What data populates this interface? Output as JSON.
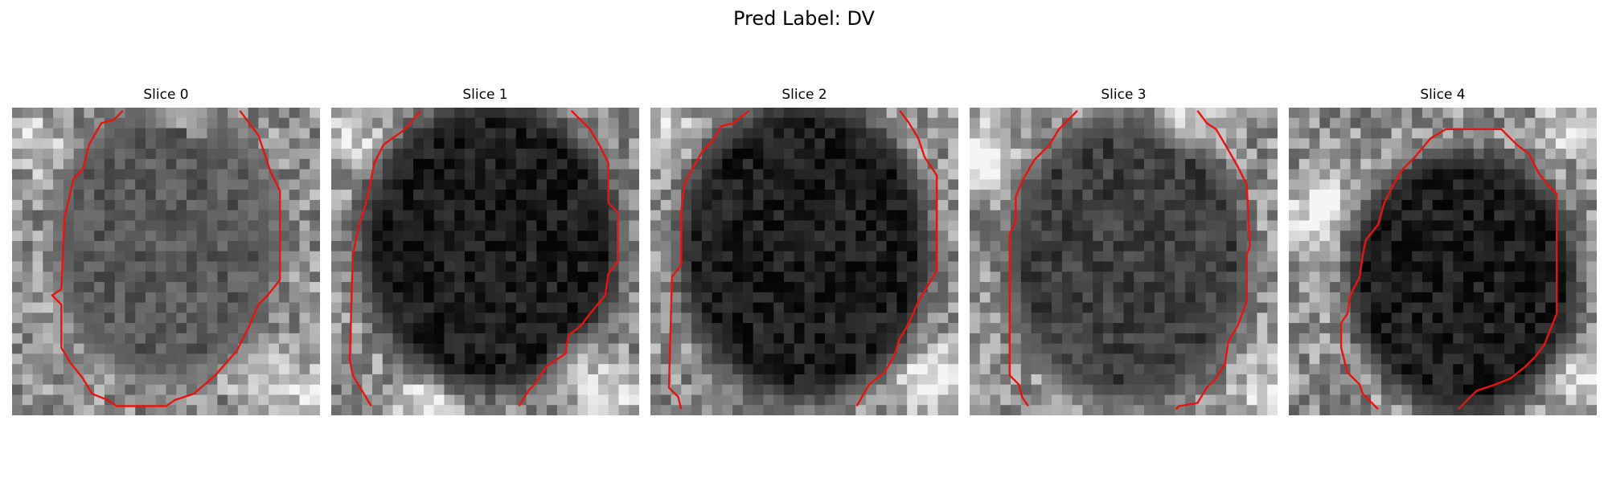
{
  "figure": {
    "suptitle": "Pred Label: DV"
  },
  "panels": [
    {
      "title": "Slice 0",
      "seed": 11,
      "blob": "gray",
      "blobCenter": [
        15,
        13
      ],
      "blobRadius": [
        11,
        13.5
      ],
      "bright": [
        [
          0.55,
          0.05
        ],
        [
          0.08,
          0.12
        ],
        [
          0.8,
          0.88
        ],
        [
          0.95,
          0.92
        ]
      ],
      "contour": [
        [
          0.36,
          0.01
        ],
        [
          0.33,
          0.04
        ],
        [
          0.29,
          0.05
        ],
        [
          0.25,
          0.12
        ],
        [
          0.23,
          0.2
        ],
        [
          0.2,
          0.23
        ],
        [
          0.17,
          0.36
        ],
        [
          0.16,
          0.59
        ],
        [
          0.13,
          0.61
        ],
        [
          0.16,
          0.64
        ],
        [
          0.16,
          0.78
        ],
        [
          0.19,
          0.83
        ],
        [
          0.23,
          0.88
        ],
        [
          0.26,
          0.93
        ],
        [
          0.31,
          0.95
        ],
        [
          0.34,
          0.97
        ],
        [
          0.5,
          0.97
        ],
        [
          0.53,
          0.95
        ],
        [
          0.59,
          0.93
        ],
        [
          0.66,
          0.87
        ],
        [
          0.73,
          0.79
        ],
        [
          0.77,
          0.71
        ],
        [
          0.8,
          0.64
        ],
        [
          0.83,
          0.61
        ],
        [
          0.87,
          0.56
        ],
        [
          0.87,
          0.27
        ],
        [
          0.84,
          0.21
        ],
        [
          0.82,
          0.15
        ],
        [
          0.8,
          0.09
        ],
        [
          0.74,
          0.01
        ]
      ]
    },
    {
      "title": "Slice 1",
      "seed": 23,
      "blob": "dark",
      "blobCenter": [
        15.5,
        13.5
      ],
      "blobRadius": [
        13,
        14.5
      ],
      "bright": [
        [
          0.06,
          0.1
        ],
        [
          0.8,
          0.82
        ],
        [
          0.92,
          0.95
        ],
        [
          0.3,
          0.96
        ]
      ],
      "contour": [
        [
          0.29,
          0.01
        ],
        [
          0.24,
          0.07
        ],
        [
          0.17,
          0.12
        ],
        [
          0.14,
          0.18
        ],
        [
          0.13,
          0.23
        ],
        [
          0.11,
          0.32
        ],
        [
          0.09,
          0.38
        ],
        [
          0.07,
          0.48
        ],
        [
          0.06,
          0.82
        ],
        [
          0.07,
          0.87
        ],
        [
          0.1,
          0.92
        ],
        [
          0.13,
          0.97
        ]
      ],
      "contour2": [
        [
          0.78,
          0.01
        ],
        [
          0.84,
          0.07
        ],
        [
          0.87,
          0.12
        ],
        [
          0.9,
          0.18
        ],
        [
          0.9,
          0.31
        ],
        [
          0.93,
          0.34
        ],
        [
          0.93,
          0.5
        ],
        [
          0.9,
          0.54
        ],
        [
          0.89,
          0.61
        ],
        [
          0.84,
          0.67
        ],
        [
          0.81,
          0.71
        ],
        [
          0.77,
          0.74
        ],
        [
          0.76,
          0.8
        ],
        [
          0.7,
          0.84
        ],
        [
          0.66,
          0.9
        ],
        [
          0.64,
          0.92
        ],
        [
          0.61,
          0.97
        ]
      ]
    },
    {
      "title": "Slice 2",
      "seed": 37,
      "blob": "dark",
      "blobCenter": [
        15,
        14
      ],
      "blobRadius": [
        12.5,
        15
      ],
      "bright": [
        [
          0.06,
          0.07
        ],
        [
          0.95,
          0.85
        ],
        [
          0.88,
          0.92
        ]
      ],
      "contour": [
        [
          0.32,
          0.01
        ],
        [
          0.27,
          0.05
        ],
        [
          0.23,
          0.06
        ],
        [
          0.2,
          0.11
        ],
        [
          0.17,
          0.14
        ],
        [
          0.13,
          0.21
        ],
        [
          0.11,
          0.25
        ],
        [
          0.1,
          0.34
        ],
        [
          0.1,
          0.51
        ],
        [
          0.07,
          0.55
        ],
        [
          0.06,
          0.91
        ],
        [
          0.09,
          0.94
        ],
        [
          0.1,
          0.98
        ]
      ],
      "contour2": [
        [
          0.81,
          0.01
        ],
        [
          0.84,
          0.05
        ],
        [
          0.87,
          0.1
        ],
        [
          0.89,
          0.16
        ],
        [
          0.93,
          0.22
        ],
        [
          0.93,
          0.53
        ],
        [
          0.9,
          0.58
        ],
        [
          0.87,
          0.63
        ],
        [
          0.84,
          0.7
        ],
        [
          0.81,
          0.75
        ],
        [
          0.79,
          0.81
        ],
        [
          0.76,
          0.86
        ],
        [
          0.71,
          0.9
        ],
        [
          0.67,
          0.97
        ]
      ]
    },
    {
      "title": "Slice 3",
      "seed": 51,
      "blob": "mid",
      "blobCenter": [
        15.5,
        15
      ],
      "blobRadius": [
        12,
        14
      ],
      "bright": [
        [
          0.06,
          0.12
        ],
        [
          0.04,
          0.2
        ],
        [
          0.7,
          0.05
        ],
        [
          0.95,
          0.9
        ]
      ],
      "contour": [
        [
          0.35,
          0.01
        ],
        [
          0.29,
          0.07
        ],
        [
          0.26,
          0.12
        ],
        [
          0.21,
          0.17
        ],
        [
          0.17,
          0.24
        ],
        [
          0.15,
          0.29
        ],
        [
          0.15,
          0.37
        ],
        [
          0.13,
          0.41
        ],
        [
          0.13,
          0.87
        ],
        [
          0.16,
          0.9
        ],
        [
          0.17,
          0.94
        ],
        [
          0.19,
          0.97
        ]
      ],
      "contour2": [
        [
          0.74,
          0.01
        ],
        [
          0.77,
          0.05
        ],
        [
          0.8,
          0.07
        ],
        [
          0.83,
          0.12
        ],
        [
          0.87,
          0.19
        ],
        [
          0.9,
          0.25
        ],
        [
          0.91,
          0.45
        ],
        [
          0.9,
          0.48
        ],
        [
          0.9,
          0.63
        ],
        [
          0.87,
          0.71
        ],
        [
          0.84,
          0.76
        ],
        [
          0.83,
          0.83
        ],
        [
          0.8,
          0.88
        ],
        [
          0.77,
          0.91
        ],
        [
          0.74,
          0.96
        ],
        [
          0.68,
          0.97
        ],
        [
          0.67,
          0.98
        ]
      ]
    },
    {
      "title": "Slice 4",
      "seed": 67,
      "blob": "dark",
      "blobCenter": [
        17,
        17
      ],
      "blobRadius": [
        11.5,
        13
      ],
      "bright": [
        [
          0.12,
          0.3
        ],
        [
          0.05,
          0.4
        ],
        [
          0.9,
          0.06
        ],
        [
          0.95,
          0.88
        ]
      ],
      "contour": [
        [
          0.51,
          0.07
        ],
        [
          0.46,
          0.1
        ],
        [
          0.41,
          0.16
        ],
        [
          0.37,
          0.2
        ],
        [
          0.34,
          0.25
        ],
        [
          0.31,
          0.31
        ],
        [
          0.29,
          0.38
        ],
        [
          0.25,
          0.43
        ],
        [
          0.24,
          0.48
        ],
        [
          0.23,
          0.55
        ],
        [
          0.2,
          0.61
        ],
        [
          0.19,
          0.67
        ],
        [
          0.17,
          0.7
        ],
        [
          0.17,
          0.78
        ],
        [
          0.19,
          0.86
        ],
        [
          0.23,
          0.9
        ],
        [
          0.24,
          0.93
        ],
        [
          0.28,
          0.97
        ],
        [
          0.29,
          0.98
        ]
      ],
      "contour2": [
        [
          0.51,
          0.07
        ],
        [
          0.69,
          0.07
        ],
        [
          0.74,
          0.12
        ],
        [
          0.78,
          0.15
        ],
        [
          0.81,
          0.21
        ],
        [
          0.84,
          0.25
        ],
        [
          0.87,
          0.28
        ],
        [
          0.87,
          0.67
        ],
        [
          0.83,
          0.77
        ],
        [
          0.8,
          0.81
        ],
        [
          0.77,
          0.84
        ],
        [
          0.72,
          0.88
        ],
        [
          0.67,
          0.9
        ],
        [
          0.61,
          0.92
        ],
        [
          0.57,
          0.96
        ],
        [
          0.55,
          0.98
        ]
      ]
    }
  ]
}
